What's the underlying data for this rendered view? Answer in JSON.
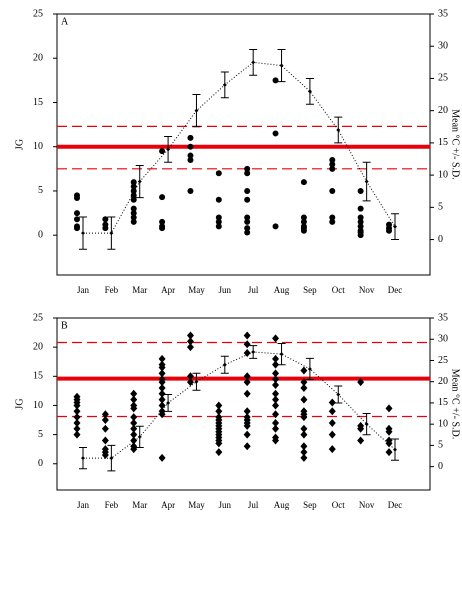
{
  "chart_data": [
    {
      "type": "scatter",
      "panel_label": "A",
      "y_label": "JG",
      "y2_label": "Mean °C +/- S.D.",
      "categories": [
        "Jan",
        "Feb",
        "Mar",
        "Apr",
        "May",
        "Jun",
        "Jul",
        "Aug",
        "Sep",
        "Oct",
        "Nov",
        "Dec"
      ],
      "marker": "circle",
      "color": "#000000",
      "jg": [
        [
          4.5,
          4.2,
          2.5,
          1.8,
          1,
          0.8
        ],
        [
          1.8,
          1.2,
          0.8
        ],
        [
          6,
          5.5,
          5,
          4.5,
          4,
          3,
          2.5,
          2,
          1.5
        ],
        [
          9.5,
          4.3,
          1.5,
          1,
          0.8
        ],
        [
          11,
          10,
          9,
          8.5,
          5
        ],
        [
          7,
          4,
          2,
          1.5,
          1
        ],
        [
          7.5,
          7,
          5,
          4,
          2,
          1.5,
          0.8,
          0.3
        ],
        [
          17.5,
          11.5,
          1
        ],
        [
          6,
          2,
          1.5,
          1,
          0.8,
          0.5
        ],
        [
          8.5,
          8,
          7.5,
          5,
          2,
          1.5
        ],
        [
          5,
          3,
          2,
          1.5,
          1,
          0.5,
          0.3,
          0
        ],
        [
          1.2,
          0.8,
          0.5
        ]
      ],
      "temperature": {
        "axis": "y2",
        "values": [
          1,
          1,
          9,
          14,
          20,
          24,
          27.5,
          27,
          23,
          17,
          9,
          2
        ],
        "errors": [
          2.5,
          2.5,
          2.5,
          2,
          2.5,
          2,
          2,
          2.5,
          2,
          2,
          3,
          2
        ]
      },
      "reference_lines": {
        "mean": 10,
        "lower": 7.5,
        "upper": 12.3,
        "color": "#e8000b"
      },
      "ylim": [
        -4.5,
        25
      ],
      "yticks": [
        0,
        5,
        10,
        15,
        20,
        25
      ],
      "y2lim": [
        -5.5,
        35
      ],
      "y2ticks": [
        0,
        5,
        10,
        15,
        20,
        25,
        30,
        35
      ]
    },
    {
      "type": "scatter",
      "panel_label": "B",
      "y_label": "JG",
      "y2_label": "Mean °C +/- S.D.",
      "categories": [
        "Jan",
        "Feb",
        "Mar",
        "Apr",
        "May",
        "Jun",
        "Jul",
        "Aug",
        "Sep",
        "Oct",
        "Nov",
        "Dec"
      ],
      "marker": "diamond",
      "color": "#000000",
      "jg": [
        [
          11.5,
          11,
          10.5,
          10,
          9,
          8,
          7,
          6,
          5
        ],
        [
          8.5,
          7.5,
          6,
          4,
          2.5,
          2,
          1.5
        ],
        [
          12,
          11,
          10,
          9.5,
          8,
          7,
          6,
          5,
          4,
          3,
          2.5
        ],
        [
          18,
          17,
          16.5,
          15.5,
          14.5,
          14,
          13,
          12,
          11,
          10,
          9,
          8.5,
          1
        ],
        [
          22,
          21,
          20,
          15,
          14
        ],
        [
          10,
          9,
          8,
          7.5,
          7,
          6.5,
          6,
          5.5,
          5,
          4.5,
          4,
          3.5,
          2
        ],
        [
          22,
          20.5,
          19,
          15,
          14,
          12,
          9,
          8,
          7.5,
          7,
          6.5,
          5,
          3
        ],
        [
          21.5,
          18,
          17,
          15.5,
          14.5,
          13.5,
          12,
          11,
          10,
          8.5,
          7,
          6,
          4.5,
          4
        ],
        [
          16,
          14,
          13,
          11,
          9,
          8.5,
          8,
          6,
          5,
          3,
          2,
          1
        ],
        [
          10.5,
          9,
          7,
          5,
          2.5
        ],
        [
          14,
          6.5,
          6,
          4
        ],
        [
          9.5,
          6,
          5.5,
          4,
          3.5,
          2
        ]
      ],
      "temperature": {
        "axis": "y2",
        "values": [
          2,
          2,
          7,
          15,
          20,
          24,
          27,
          26.5,
          23,
          17,
          10,
          4
        ],
        "errors": [
          2.5,
          3,
          2.5,
          2,
          2,
          2,
          1.5,
          2.5,
          2.5,
          2,
          2.5,
          2.5
        ]
      },
      "reference_lines": {
        "mean": 14.6,
        "lower": 8.1,
        "upper": 20.8,
        "color": "#e8000b"
      },
      "ylim": [
        -4.5,
        25
      ],
      "yticks": [
        0,
        5,
        10,
        15,
        20,
        25
      ],
      "y2lim": [
        -5.5,
        35
      ],
      "y2ticks": [
        0,
        5,
        10,
        15,
        20,
        25,
        30,
        35
      ]
    }
  ]
}
